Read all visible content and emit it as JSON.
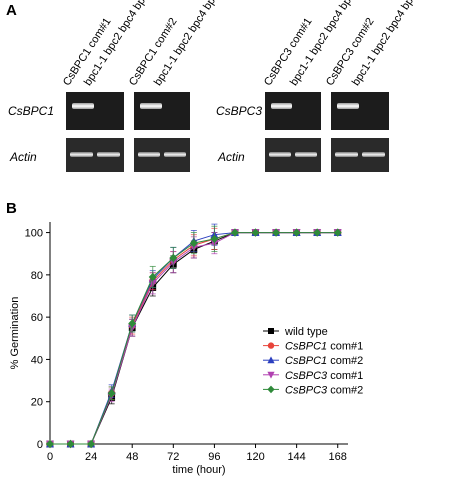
{
  "panel_a": {
    "letter": "A",
    "left_lanes": [
      "CsBPC1 com#1",
      "bpc1-1 bpc2 bpc4 bpc6",
      "CsBPC1 com#2",
      "bpc1-1 bpc2 bpc4 bpc6"
    ],
    "right_lanes": [
      "CsBPC3 com#1",
      "bpc1-1 bpc2 bpc4 bpc6",
      "CsBPC3 com#2",
      "bpc1-1 bpc2 bpc4 bpc6"
    ],
    "row_labels": {
      "left_gene": "CsBPC1",
      "right_gene": "CsBPC3",
      "actin_left": "Actin",
      "actin_right": "Actin"
    }
  },
  "panel_b": {
    "letter": "B"
  },
  "chart_data": {
    "type": "line",
    "title": "",
    "xlabel": "time (hour)",
    "ylabel": "% Germination",
    "xlim": [
      0,
      174
    ],
    "ylim": [
      0,
      105
    ],
    "xticks": [
      0,
      24,
      48,
      72,
      96,
      120,
      144,
      168
    ],
    "yticks": [
      0,
      20,
      40,
      60,
      80,
      100
    ],
    "legend_position": "right",
    "x": [
      0,
      12,
      24,
      36,
      48,
      60,
      72,
      84,
      96,
      108,
      120,
      132,
      144,
      156,
      168
    ],
    "series": [
      {
        "name": "wild type",
        "name_parts": [
          "",
          "wild type"
        ],
        "color": "#000000",
        "marker": "square",
        "values": [
          0,
          0,
          0,
          22,
          55,
          74,
          85,
          92,
          96,
          100,
          100,
          100,
          100,
          100,
          100
        ],
        "errors": [
          0,
          0,
          0,
          3,
          4,
          4,
          4,
          4,
          4,
          0,
          0,
          0,
          0,
          0,
          0
        ]
      },
      {
        "name": "CsBPC1 com#1",
        "name_parts": [
          "CsBPC1",
          " com#1"
        ],
        "color": "#e8443a",
        "marker": "circle",
        "values": [
          0,
          0,
          0,
          24,
          56,
          77,
          87,
          94,
          97,
          100,
          100,
          100,
          100,
          100,
          100
        ],
        "errors": [
          0,
          0,
          0,
          3,
          4,
          4,
          4,
          5,
          5,
          0,
          0,
          0,
          0,
          0,
          0
        ]
      },
      {
        "name": "CsBPC1 com#2",
        "name_parts": [
          "CsBPC1",
          " com#2"
        ],
        "color": "#2b3fbf",
        "marker": "triangle-up",
        "values": [
          0,
          0,
          0,
          25,
          57,
          78,
          88,
          96,
          99,
          100,
          100,
          100,
          100,
          100,
          100
        ],
        "errors": [
          0,
          0,
          0,
          3,
          4,
          4,
          5,
          5,
          5,
          0,
          0,
          0,
          0,
          0,
          0
        ]
      },
      {
        "name": "CsBPC3 com#1",
        "name_parts": [
          "CsBPC3",
          " com#1"
        ],
        "color": "#b040b0",
        "marker": "triangle-down",
        "values": [
          0,
          0,
          0,
          23,
          55,
          76,
          86,
          93,
          95,
          100,
          100,
          100,
          100,
          100,
          100
        ],
        "errors": [
          0,
          0,
          0,
          3,
          4,
          5,
          5,
          5,
          5,
          0,
          0,
          0,
          0,
          0,
          0
        ]
      },
      {
        "name": "CsBPC3 com#2",
        "name_parts": [
          "CsBPC3",
          " com#2"
        ],
        "color": "#2f8a3a",
        "marker": "diamond",
        "values": [
          0,
          0,
          0,
          24,
          57,
          79,
          88,
          95,
          97,
          100,
          100,
          100,
          100,
          100,
          100
        ],
        "errors": [
          0,
          0,
          0,
          3,
          4,
          5,
          5,
          5,
          6,
          0,
          0,
          0,
          0,
          0,
          0
        ]
      }
    ]
  }
}
